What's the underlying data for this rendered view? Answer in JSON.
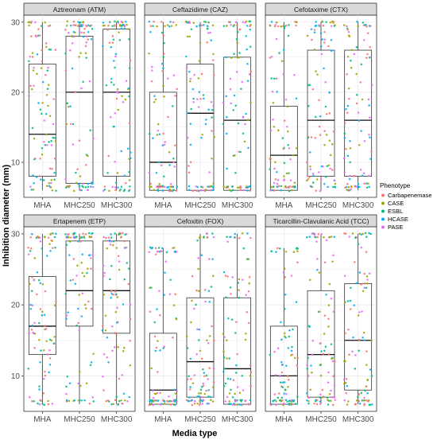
{
  "chart_data": {
    "type": "box",
    "xlabel": "Media type",
    "ylabel": "Inhibition diameter (mm)",
    "categories": [
      "MHA",
      "MHC250",
      "MHC300"
    ],
    "ylim": [
      5,
      31
    ],
    "y_ticks": [
      10,
      20,
      30
    ],
    "grid": true,
    "legend": {
      "title": "Phenotype",
      "placement": "right",
      "entries": [
        {
          "label": "Carbapenemase",
          "color": "#F8766D"
        },
        {
          "label": "CASE",
          "color": "#A3A500"
        },
        {
          "label": "ESBL",
          "color": "#00BF7D"
        },
        {
          "label": "HCASE",
          "color": "#00B0F6"
        },
        {
          "label": "PASE",
          "color": "#E76BF3"
        }
      ]
    },
    "panels": [
      {
        "title": "Aztreonam (ATM)",
        "boxes": [
          {
            "category": "MHA",
            "q1": 8,
            "median": 14,
            "q3": 24,
            "whisker_low": 6,
            "whisker_high": 30
          },
          {
            "category": "MHC250",
            "q1": 7,
            "median": 20,
            "q3": 28,
            "whisker_low": 6,
            "whisker_high": 30
          },
          {
            "category": "MHC300",
            "q1": 8,
            "median": 20,
            "q3": 29,
            "whisker_low": 6,
            "whisker_high": 30
          }
        ]
      },
      {
        "title": "Ceftazidime (CAZ)",
        "boxes": [
          {
            "category": "MHA",
            "q1": 6,
            "median": 10,
            "q3": 20,
            "whisker_low": 6,
            "whisker_high": 30
          },
          {
            "category": "MHC250",
            "q1": 6,
            "median": 17,
            "q3": 24,
            "whisker_low": 6,
            "whisker_high": 30
          },
          {
            "category": "MHC300",
            "q1": 6,
            "median": 16,
            "q3": 25,
            "whisker_low": 6,
            "whisker_high": 30
          }
        ]
      },
      {
        "title": "Cefotaxime (CTX)",
        "boxes": [
          {
            "category": "MHA",
            "q1": 6,
            "median": 11,
            "q3": 18,
            "whisker_low": 6,
            "whisker_high": 30
          },
          {
            "category": "MHC250",
            "q1": 8,
            "median": 16,
            "q3": 26,
            "whisker_low": 6,
            "whisker_high": 30
          },
          {
            "category": "MHC300",
            "q1": 8,
            "median": 16,
            "q3": 26,
            "whisker_low": 6,
            "whisker_high": 30
          }
        ]
      },
      {
        "title": "Ertapenem (ETP)",
        "boxes": [
          {
            "category": "MHA",
            "q1": 13,
            "median": 17,
            "q3": 24,
            "whisker_low": 6,
            "whisker_high": 30
          },
          {
            "category": "MHC250",
            "q1": 17,
            "median": 22,
            "q3": 29,
            "whisker_low": 6,
            "whisker_high": 30
          },
          {
            "category": "MHC300",
            "q1": 16,
            "median": 22,
            "q3": 29,
            "whisker_low": 6,
            "whisker_high": 30
          }
        ]
      },
      {
        "title": "Cefoxitin (FOX)",
        "boxes": [
          {
            "category": "MHA",
            "q1": 6,
            "median": 8,
            "q3": 16,
            "whisker_low": 6,
            "whisker_high": 28
          },
          {
            "category": "MHC250",
            "q1": 7,
            "median": 12,
            "q3": 21,
            "whisker_low": 6,
            "whisker_high": 30
          },
          {
            "category": "MHC300",
            "q1": 6,
            "median": 11,
            "q3": 21,
            "whisker_low": 6,
            "whisker_high": 30
          }
        ]
      },
      {
        "title": "Ticarcillin-Clavulanic Acid (TCC)",
        "boxes": [
          {
            "category": "MHA",
            "q1": 6,
            "median": 10,
            "q3": 17,
            "whisker_low": 6,
            "whisker_high": 28
          },
          {
            "category": "MHC250",
            "q1": 7,
            "median": 13,
            "q3": 22,
            "whisker_low": 6,
            "whisker_high": 30
          },
          {
            "category": "MHC300",
            "q1": 8,
            "median": 15,
            "q3": 23,
            "whisker_low": 6,
            "whisker_high": 30
          }
        ]
      }
    ]
  }
}
